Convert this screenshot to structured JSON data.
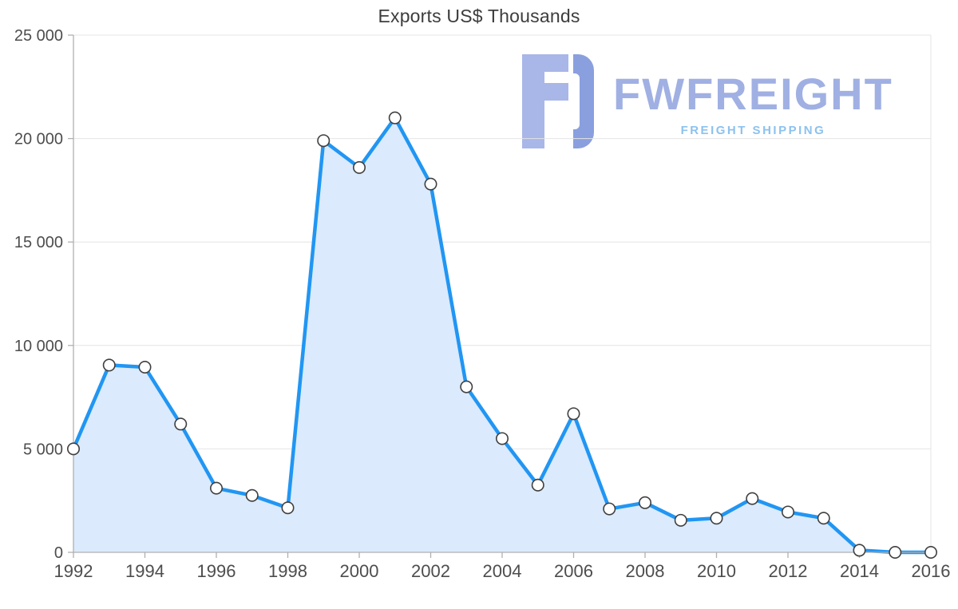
{
  "chart_data": {
    "type": "area",
    "title": "Exports US$ Thousands",
    "series_name": "Exports US$ Thousands",
    "x": [
      1992,
      1993,
      1994,
      1995,
      1996,
      1997,
      1998,
      1999,
      2000,
      2001,
      2002,
      2003,
      2004,
      2005,
      2006,
      2007,
      2008,
      2009,
      2010,
      2011,
      2012,
      2013,
      2014,
      2015,
      2016
    ],
    "values": [
      5000,
      9050,
      8950,
      6200,
      3100,
      2750,
      2150,
      19900,
      18600,
      21000,
      17800,
      8000,
      5500,
      3250,
      6700,
      2100,
      2400,
      1550,
      1650,
      2600,
      1950,
      1650,
      100,
      0,
      0
    ],
    "xlim": [
      1992,
      2016
    ],
    "ylim": [
      0,
      25000
    ],
    "x_ticks": [
      {
        "v": 1992,
        "label": "1992"
      },
      {
        "v": 1994,
        "label": "1994"
      },
      {
        "v": 1996,
        "label": "1996"
      },
      {
        "v": 1998,
        "label": "1998"
      },
      {
        "v": 2000,
        "label": "2000"
      },
      {
        "v": 2002,
        "label": "2002"
      },
      {
        "v": 2004,
        "label": "2004"
      },
      {
        "v": 2006,
        "label": "2006"
      },
      {
        "v": 2008,
        "label": "2008"
      },
      {
        "v": 2010,
        "label": "2010"
      },
      {
        "v": 2012,
        "label": "2012"
      },
      {
        "v": 2014,
        "label": "2014"
      },
      {
        "v": 2016,
        "label": "2016"
      }
    ],
    "y_ticks": [
      {
        "v": 0,
        "label": "0"
      },
      {
        "v": 5000,
        "label": "5 000"
      },
      {
        "v": 10000,
        "label": "10 000"
      },
      {
        "v": 15000,
        "label": "15 000"
      },
      {
        "v": 20000,
        "label": "20 000"
      },
      {
        "v": 25000,
        "label": "25 000"
      }
    ],
    "grid": "horizontal",
    "legend": "none",
    "colors": {
      "line": "#2196f3",
      "fill": "#dbeafc",
      "marker_fill": "#ffffff",
      "marker_stroke": "#3f3f3f",
      "grid": "#e4e4e4",
      "axis": "#b0b0b0",
      "tick_text": "#4d4d4d",
      "title_text": "#3d3d3d"
    }
  },
  "watermark": {
    "brand": "FWFREIGHT",
    "tagline": "FREIGHT SHIPPING",
    "brand_color": "#a0b0e3",
    "tagline_color": "#8cc2ee",
    "logo_light": "#a8b6e8",
    "logo_dark": "#8a9fde"
  }
}
